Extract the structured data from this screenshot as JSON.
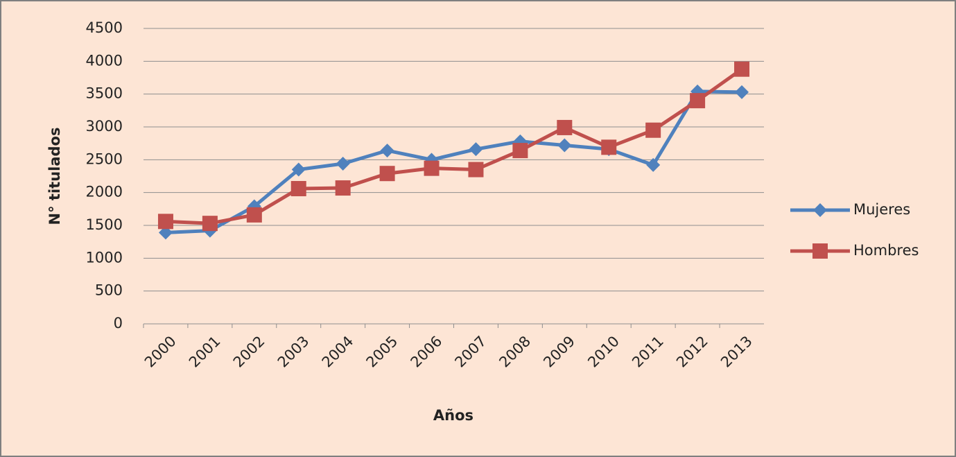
{
  "chart_data": {
    "type": "line",
    "x_label": "Años",
    "y_label": "N° titulados",
    "categories": [
      "2000",
      "2001",
      "2002",
      "2003",
      "2004",
      "2005",
      "2006",
      "2007",
      "2008",
      "2009",
      "2010",
      "2011",
      "2012",
      "2013"
    ],
    "series": [
      {
        "name": "Mujeres",
        "color": "#4f81bd",
        "marker": "diamond",
        "values": [
          1390,
          1420,
          1790,
          2350,
          2440,
          2640,
          2500,
          2660,
          2780,
          2720,
          2660,
          2420,
          3540,
          3530
        ]
      },
      {
        "name": "Hombres",
        "color": "#c0504d",
        "marker": "square",
        "values": [
          1560,
          1530,
          1660,
          2060,
          2070,
          2290,
          2370,
          2350,
          2640,
          2990,
          2690,
          2950,
          3400,
          3880
        ]
      }
    ],
    "ylim": [
      0,
      4500
    ],
    "yticks": [
      0,
      500,
      1000,
      1500,
      2000,
      2500,
      3000,
      3500,
      4000,
      4500
    ],
    "grid": true,
    "legend": "right"
  }
}
